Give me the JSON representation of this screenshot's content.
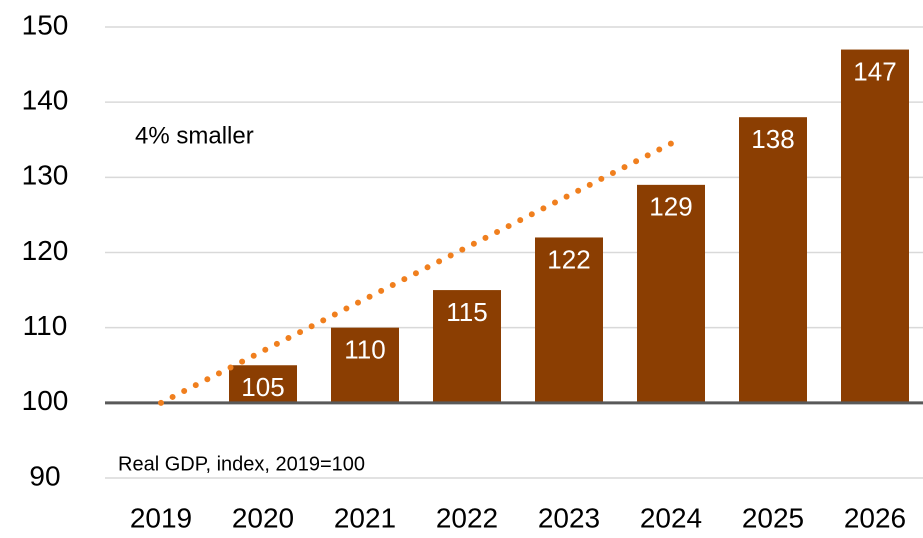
{
  "chart_data": {
    "type": "bar",
    "annotations": [
      "4% smaller",
      "Real GDP, index, 2019=100"
    ],
    "categories": [
      "2019",
      "2020",
      "2021",
      "2022",
      "2023",
      "2024",
      "2025",
      "2026"
    ],
    "series": [
      {
        "type": "bar",
        "color": "#8b3e02",
        "values": [
          null,
          105,
          110,
          115,
          122,
          129,
          138,
          147
        ]
      },
      {
        "type": "line",
        "color": "#f07f1e",
        "dotted": true,
        "values": [
          100,
          106.9,
          113.8,
          120.7,
          127.6,
          134.5,
          null,
          null
        ]
      }
    ],
    "ylim": [
      90,
      150
    ],
    "yticks": [
      90,
      100,
      110,
      120,
      130,
      140,
      150
    ],
    "grid": true,
    "baseline": 100
  }
}
